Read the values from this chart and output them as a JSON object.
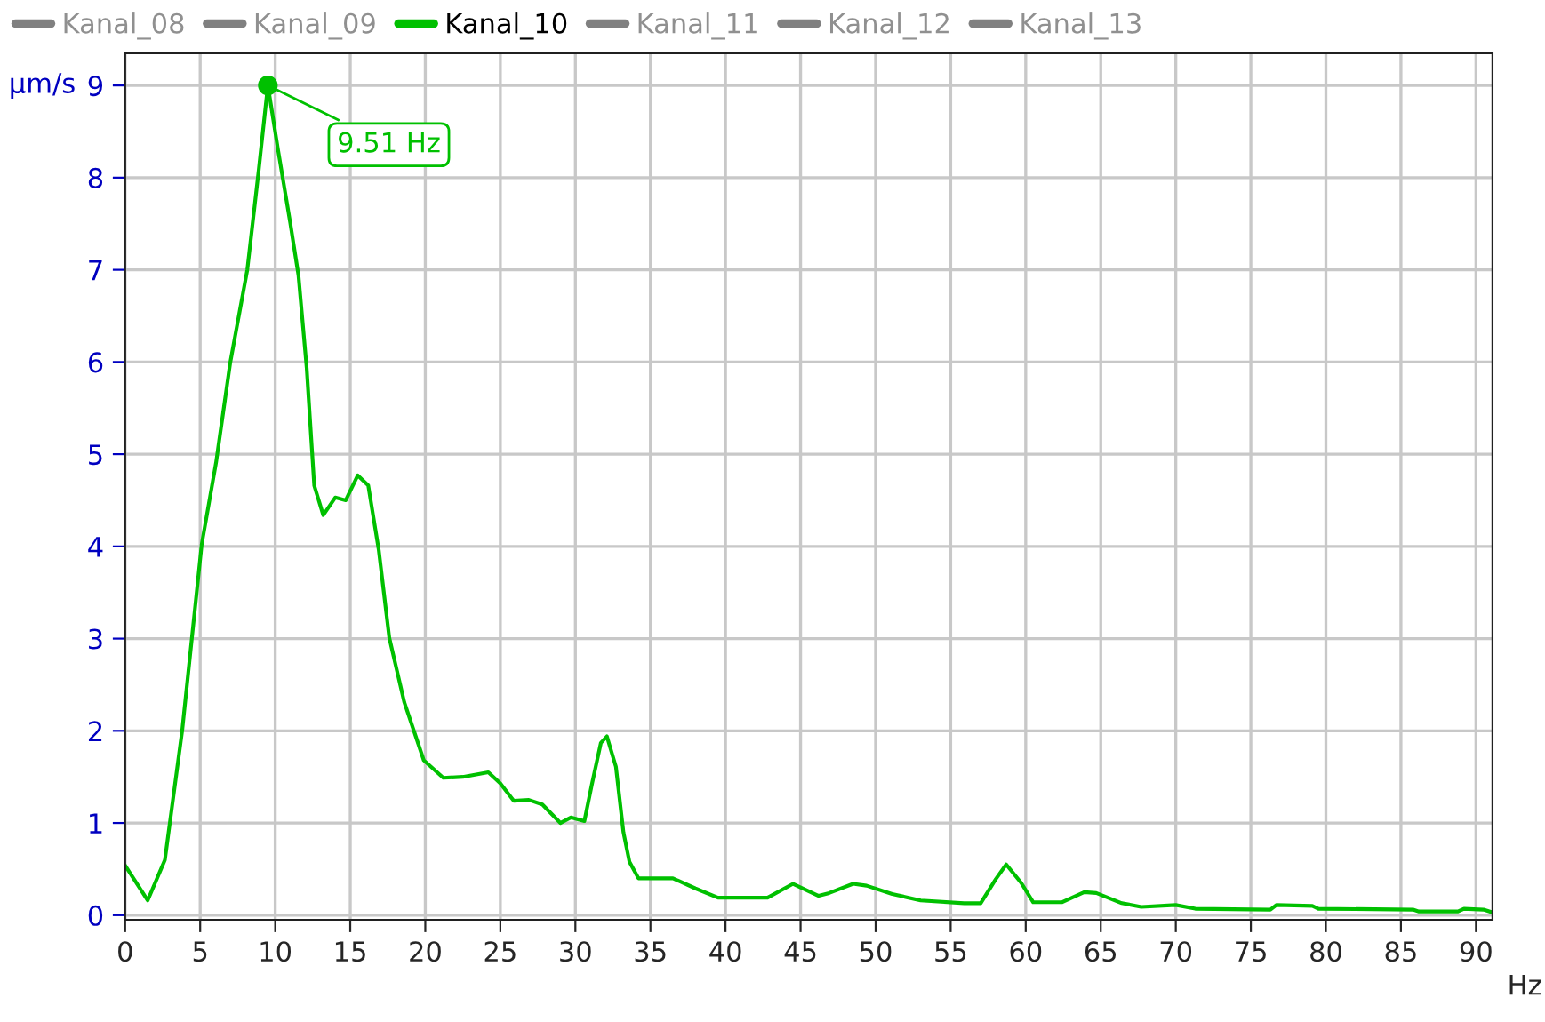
{
  "chart_data": {
    "type": "line",
    "xlabel": "Hz",
    "ylabel": "µm/s",
    "x": [
      0,
      1.5,
      2.65,
      3.8,
      5.1,
      6.06,
      7.0,
      8.14,
      8.9,
      9.51,
      10.2,
      11.0,
      11.55,
      12.1,
      12.6,
      13.2,
      14.0,
      14.7,
      15.5,
      16.2,
      16.9,
      17.6,
      18.6,
      19.9,
      21.2,
      22.5,
      24.2,
      25.0,
      25.9,
      26.9,
      27.8,
      29.0,
      29.7,
      30.6,
      31.1,
      31.7,
      32.1,
      32.7,
      33.2,
      33.6,
      34.2,
      36.5,
      38.0,
      39.5,
      42.8,
      44.5,
      46.2,
      46.9,
      48.5,
      49.4,
      51.1,
      53.0,
      55.9,
      57.0,
      58.0,
      58.7,
      59.7,
      60.5,
      62.4,
      63.9,
      64.7,
      66.4,
      67.7,
      70.0,
      71.3,
      76.3,
      76.7,
      79.1,
      79.5,
      85.8,
      86.2,
      88.8,
      89.2,
      90.5,
      91.1
    ],
    "series": [
      {
        "name": "Kanal_08",
        "color": "#808080",
        "values": [
          null,
          null,
          null,
          null,
          null,
          null,
          null,
          null,
          null,
          null,
          null,
          null,
          null,
          null,
          null,
          null,
          null,
          null,
          null,
          null,
          null,
          null,
          null,
          null,
          null,
          null,
          null,
          null,
          null,
          null,
          null,
          null,
          null,
          null,
          null,
          null,
          null,
          null,
          null,
          null,
          null,
          null,
          null,
          null,
          null,
          null,
          null,
          null,
          null,
          null,
          null,
          null,
          null,
          null,
          null,
          null,
          null,
          null,
          null,
          null,
          null,
          null,
          null,
          null,
          null,
          null,
          null,
          null,
          null,
          null,
          null,
          null,
          null,
          null,
          null
        ]
      },
      {
        "name": "Kanal_09",
        "color": "#808080",
        "values": [
          null,
          null,
          null,
          null,
          null,
          null,
          null,
          null,
          null,
          null,
          null,
          null,
          null,
          null,
          null,
          null,
          null,
          null,
          null,
          null,
          null,
          null,
          null,
          null,
          null,
          null,
          null,
          null,
          null,
          null,
          null,
          null,
          null,
          null,
          null,
          null,
          null,
          null,
          null,
          null,
          null,
          null,
          null,
          null,
          null,
          null,
          null,
          null,
          null,
          null,
          null,
          null,
          null,
          null,
          null,
          null,
          null,
          null,
          null,
          null,
          null,
          null,
          null,
          null,
          null,
          null,
          null,
          null,
          null,
          null,
          null,
          null,
          null,
          null,
          null
        ]
      },
      {
        "name": "Kanal_10",
        "color": "#00c000",
        "values": [
          0.54,
          0.16,
          0.6,
          2.0,
          4.02,
          4.91,
          5.99,
          7.0,
          8.08,
          9.0,
          8.29,
          7.51,
          6.94,
          5.93,
          4.66,
          4.34,
          4.53,
          4.5,
          4.77,
          4.66,
          3.96,
          3.01,
          2.31,
          1.68,
          1.49,
          1.5,
          1.55,
          1.43,
          1.24,
          1.25,
          1.2,
          1.0,
          1.06,
          1.02,
          1.42,
          1.87,
          1.94,
          1.61,
          0.9,
          0.58,
          0.4,
          0.4,
          0.29,
          0.19,
          0.19,
          0.34,
          0.21,
          0.24,
          0.34,
          0.32,
          0.23,
          0.16,
          0.13,
          0.13,
          0.39,
          0.55,
          0.35,
          0.14,
          0.14,
          0.25,
          0.24,
          0.13,
          0.09,
          0.11,
          0.07,
          0.06,
          0.11,
          0.1,
          0.07,
          0.06,
          0.04,
          0.04,
          0.07,
          0.06,
          0.03
        ]
      },
      {
        "name": "Kanal_11",
        "color": "#808080",
        "values": [
          null,
          null,
          null,
          null,
          null,
          null,
          null,
          null,
          null,
          null,
          null,
          null,
          null,
          null,
          null,
          null,
          null,
          null,
          null,
          null,
          null,
          null,
          null,
          null,
          null,
          null,
          null,
          null,
          null,
          null,
          null,
          null,
          null,
          null,
          null,
          null,
          null,
          null,
          null,
          null,
          null,
          null,
          null,
          null,
          null,
          null,
          null,
          null,
          null,
          null,
          null,
          null,
          null,
          null,
          null,
          null,
          null,
          null,
          null,
          null,
          null,
          null,
          null,
          null,
          null,
          null,
          null,
          null,
          null,
          null,
          null,
          null,
          null,
          null,
          null
        ]
      },
      {
        "name": "Kanal_12",
        "color": "#808080",
        "values": [
          null,
          null,
          null,
          null,
          null,
          null,
          null,
          null,
          null,
          null,
          null,
          null,
          null,
          null,
          null,
          null,
          null,
          null,
          null,
          null,
          null,
          null,
          null,
          null,
          null,
          null,
          null,
          null,
          null,
          null,
          null,
          null,
          null,
          null,
          null,
          null,
          null,
          null,
          null,
          null,
          null,
          null,
          null,
          null,
          null,
          null,
          null,
          null,
          null,
          null,
          null,
          null,
          null,
          null,
          null,
          null,
          null,
          null,
          null,
          null,
          null,
          null,
          null,
          null,
          null,
          null,
          null,
          null,
          null,
          null,
          null,
          null,
          null,
          null,
          null
        ]
      },
      {
        "name": "Kanal_13",
        "color": "#808080",
        "values": [
          null,
          null,
          null,
          null,
          null,
          null,
          null,
          null,
          null,
          null,
          null,
          null,
          null,
          null,
          null,
          null,
          null,
          null,
          null,
          null,
          null,
          null,
          null,
          null,
          null,
          null,
          null,
          null,
          null,
          null,
          null,
          null,
          null,
          null,
          null,
          null,
          null,
          null,
          null,
          null,
          null,
          null,
          null,
          null,
          null,
          null,
          null,
          null,
          null,
          null,
          null,
          null,
          null,
          null,
          null,
          null,
          null,
          null,
          null,
          null,
          null,
          null,
          null,
          null,
          null,
          null,
          null,
          null,
          null,
          null,
          null,
          null,
          null,
          null,
          null
        ]
      }
    ],
    "annotations": [
      {
        "text": "9.51 Hz",
        "x": 9.51,
        "y": 9.0
      }
    ],
    "xlim": [
      0,
      91.1
    ],
    "ylim": [
      -0.05,
      9.35
    ],
    "xticks": [
      0,
      5,
      10,
      15,
      20,
      25,
      30,
      35,
      40,
      45,
      50,
      55,
      60,
      65,
      70,
      75,
      80,
      85,
      90
    ],
    "yticks": [
      0,
      1,
      2,
      3,
      4,
      5,
      6,
      7,
      8,
      9
    ],
    "grid": true,
    "legend": "top",
    "marker": "none",
    "line_style": "solid"
  }
}
